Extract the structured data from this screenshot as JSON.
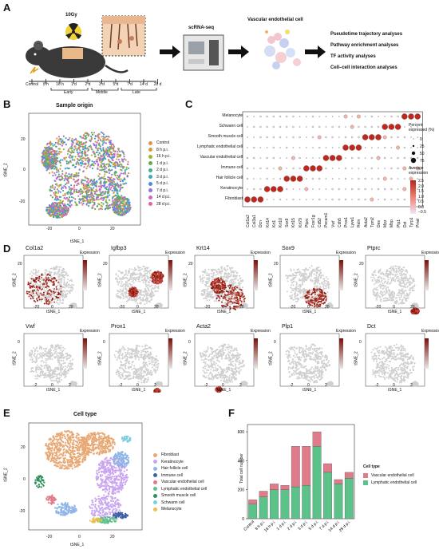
{
  "panels": {
    "A": {
      "label": "A",
      "dose": "10Gy",
      "method": "scRNA-seq",
      "cell_title": "Vascular endothelial cell",
      "timeline": [
        "Control",
        "8 h",
        "16 h",
        "1 d",
        "2 d",
        "3 d",
        "5 d",
        "7 d",
        "14 d",
        "28 d"
      ],
      "phases": [
        "Early",
        "Middle",
        "Late"
      ],
      "analyses": [
        "Pseudotime trajectory analyses",
        "Pathway enrichment analyses",
        "TF activity analyses",
        "Cell–cell interaction analyses"
      ]
    },
    "B": {
      "label": "B",
      "title": "Sample origin",
      "xlabel": "tSNE_1",
      "ylabel": "tSNE_2",
      "xticks": [
        "-20",
        "0",
        "20"
      ],
      "yticks": [
        "20",
        "0",
        "-20"
      ],
      "legend": [
        {
          "name": "Control",
          "color": "#e0954a"
        },
        {
          "name": "8 h p.i.",
          "color": "#c9a23b"
        },
        {
          "name": "16 h p.i.",
          "color": "#9fb13a"
        },
        {
          "name": "1 d p.i.",
          "color": "#5bb04a"
        },
        {
          "name": "2 d p.i.",
          "color": "#3db38a"
        },
        {
          "name": "3 d p.i.",
          "color": "#38a9c4"
        },
        {
          "name": "5 d p.i.",
          "color": "#4b8fe0"
        },
        {
          "name": "7 d p.i.",
          "color": "#8b74e0"
        },
        {
          "name": "14 d p.i.",
          "color": "#c367d6"
        },
        {
          "name": "28 d p.i.",
          "color": "#e462a6"
        }
      ]
    },
    "C": {
      "label": "C",
      "rows": [
        "Melanocyte",
        "Schwann cell",
        "Smooth muscle cell",
        "Lymphatic endothelial cell",
        "Vascular endothelial cell",
        "Immune cell",
        "Hair follicle cell",
        "Keratinocyte",
        "Fibroblast"
      ],
      "genes": [
        "Col1a2",
        "Col3a1",
        "Dcn",
        "Krt14",
        "Krt1",
        "Krt10",
        "Sox9",
        "Krt15",
        "Krt79",
        "Ptprc",
        "Fcer1g",
        "Cd52",
        "Pecam1",
        "Vwf",
        "Cdh5",
        "Prox1",
        "Lyve1",
        "Reln",
        "Acta2",
        "Tpm2",
        "Des",
        "Mpz",
        "Mbp",
        "Plp1",
        "Dct",
        "Tyrp1",
        "Pmel"
      ],
      "pct_title": "Percent expressed (%)",
      "pct_ticks": [
        "0",
        "25",
        "50",
        "75"
      ],
      "avg_title": "Average expression",
      "avg_ticks": [
        "2.5",
        "2.0",
        "1.5",
        "1.0",
        "0.5",
        "0.0",
        "−0.5"
      ]
    },
    "D": {
      "label": "D",
      "genes": [
        "Col1a2",
        "Igfbp3",
        "Krt14",
        "Sox9",
        "Ptprc",
        "Vwf",
        "Prox1",
        "Acta2",
        "Plp1",
        "Dct"
      ],
      "legend_title": "Expression",
      "xlabel": "tSNE_1",
      "ylabel": "tSNE_2",
      "xticks_top": [
        "-20",
        "0",
        "20"
      ],
      "xticks_bottom": [
        "-2",
        "0",
        "2"
      ],
      "ytick_top": "20",
      "ytick_bottom": "0"
    },
    "E": {
      "label": "E",
      "title": "Cell type",
      "xlabel": "tSNE_1",
      "ylabel": "tSNE_2",
      "xticks": [
        "-20",
        "0",
        "20"
      ],
      "yticks": [
        "20",
        "0",
        "-20"
      ],
      "legend": [
        {
          "name": "Fibroblast",
          "color": "#e8a874"
        },
        {
          "name": "Keratinocyte",
          "color": "#c9a4f0"
        },
        {
          "name": "Hair follicle cell",
          "color": "#8fb4e8"
        },
        {
          "name": "Immune cell",
          "color": "#3f5fa8"
        },
        {
          "name": "Vascular endothelial cell",
          "color": "#e07b8a"
        },
        {
          "name": "Lymphatic endothelial cell",
          "color": "#5cc28a"
        },
        {
          "name": "Smooth muscle cell",
          "color": "#2e8f5a"
        },
        {
          "name": "Schwann cell",
          "color": "#7ccfe0"
        },
        {
          "name": "Melanocyte",
          "color": "#e8c04a"
        }
      ]
    },
    "F": {
      "label": "F",
      "legend_title": "Cell type"
    }
  },
  "chart_data": {
    "type": "bar",
    "stacked": true,
    "categories": [
      "Control",
      "8 h p.i.",
      "16 h p.i.",
      "1 d p.i.",
      "2 d p.i.",
      "3 d p.i.",
      "5 d p.i.",
      "7 d p.i.",
      "14 d p.i.",
      "28 d p.i."
    ],
    "series": [
      {
        "name": "Lymphatic endothelial cell",
        "color": "#5cc28a",
        "values": [
          100,
          150,
          200,
          200,
          220,
          230,
          500,
          320,
          240,
          280
        ]
      },
      {
        "name": "Vascular endothelial cell",
        "color": "#e07b8a",
        "values": [
          30,
          40,
          40,
          30,
          280,
          270,
          100,
          60,
          30,
          40
        ]
      }
    ],
    "ylabel": "Total cell number",
    "yticks": [
      0,
      200,
      400,
      600
    ],
    "ylim": [
      0,
      650
    ]
  }
}
